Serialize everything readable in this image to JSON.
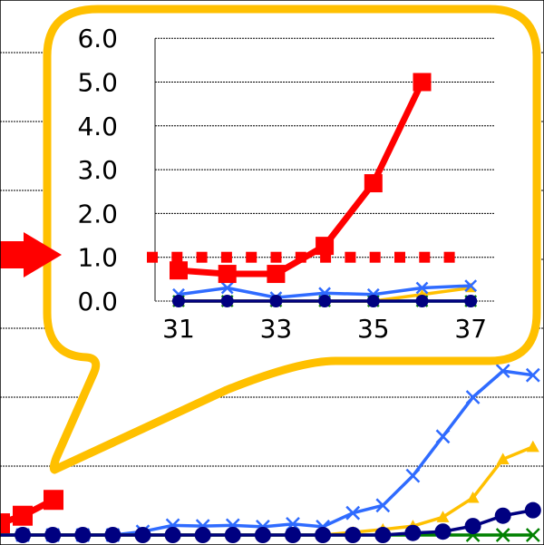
{
  "chart_data": [
    {
      "type": "line",
      "role": "background",
      "grid": true,
      "series": [
        {
          "color": "#ff0000",
          "marker": "square",
          "values": [
            0.17,
            0.28,
            0.51
          ]
        },
        {
          "color": "#2f6bff",
          "marker": "x",
          "values": [
            0,
            0,
            0,
            0,
            0,
            0.05,
            0.14,
            0.13,
            0.14,
            0.12,
            0.16,
            0.12,
            0.32,
            0.43,
            0.86,
            1.43,
            2.0,
            2.38,
            2.32
          ]
        },
        {
          "color": "#ffc000",
          "marker": "triangle",
          "values": [
            0,
            0,
            0,
            0,
            0,
            0,
            0,
            0,
            0,
            0,
            0,
            0,
            0.04,
            0.08,
            0.13,
            0.26,
            0.54,
            1.1,
            1.28
          ]
        },
        {
          "color": "#008000",
          "marker": "x",
          "values": [
            0,
            0,
            0,
            0,
            0,
            0,
            0,
            0,
            0,
            0,
            0,
            0,
            0,
            0,
            0,
            0,
            0,
            0,
            0
          ]
        },
        {
          "color": "#000080",
          "marker": "circle",
          "values": [
            0,
            0,
            0,
            0,
            0,
            0,
            0,
            0,
            0,
            0,
            0,
            0,
            0,
            0,
            0.03,
            0.05,
            0.13,
            0.28,
            0.36
          ]
        }
      ]
    },
    {
      "type": "line",
      "role": "inset",
      "grid": true,
      "ylim": [
        0,
        6
      ],
      "yticks": [
        "0.0",
        "1.0",
        "2.0",
        "3.0",
        "4.0",
        "5.0",
        "6.0"
      ],
      "x": [
        31,
        32,
        33,
        34,
        35,
        36,
        37
      ],
      "xticks": [
        "31",
        "33",
        "35",
        "37"
      ],
      "reference_line": {
        "value": 1.0,
        "color": "#ff0000",
        "style": "dotted"
      },
      "series": [
        {
          "color": "#ff0000",
          "marker": "square",
          "values": [
            0.7,
            0.62,
            0.62,
            1.26,
            2.69,
            5.0,
            null
          ]
        },
        {
          "color": "#2f6bff",
          "marker": "x",
          "values": [
            0.15,
            0.3,
            0.08,
            0.18,
            0.15,
            0.3,
            0.35
          ]
        },
        {
          "color": "#ffc000",
          "marker": "triangle",
          "values": [
            0,
            0,
            0,
            0,
            0,
            0.15,
            0.3
          ]
        },
        {
          "color": "#008000",
          "marker": "x",
          "values": [
            0,
            0,
            0,
            0,
            0,
            0,
            0
          ]
        },
        {
          "color": "#000080",
          "marker": "circle",
          "values": [
            0,
            0,
            0,
            0,
            0,
            0,
            0
          ]
        }
      ]
    }
  ],
  "callout_color": "#ffc000",
  "arrow_color": "#ff0000"
}
